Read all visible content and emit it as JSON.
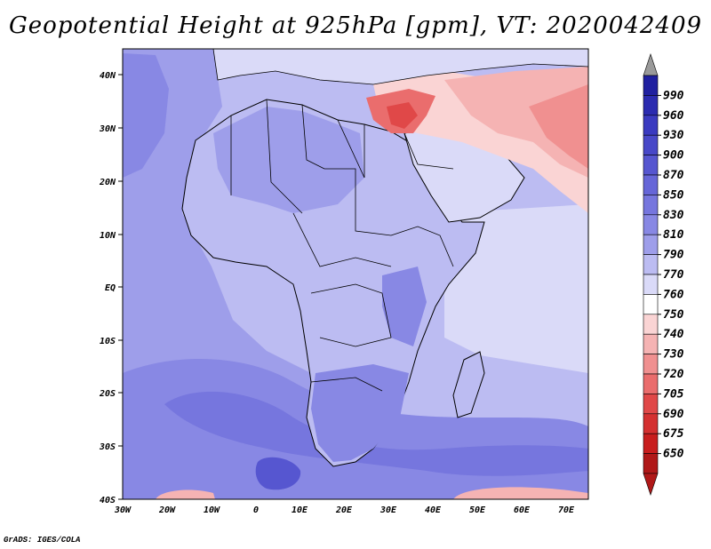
{
  "title": "Geopotential Height at 925hPa [gpm], VT: 2020042409",
  "credit": "GrADS: IGES/COLA",
  "map": {
    "variable": "Geopotential Height",
    "level": "925hPa",
    "units": "gpm",
    "valid_time": "2020042409",
    "lon_range": [
      -30,
      75
    ],
    "lat_range": [
      -40,
      45
    ],
    "lat_labels": [
      "40N",
      "30N",
      "20N",
      "10N",
      "EQ",
      "10S",
      "20S",
      "30S",
      "40S"
    ],
    "lon_labels": [
      "30W",
      "20W",
      "10W",
      "0",
      "10E",
      "20E",
      "30E",
      "40E",
      "50E",
      "60E",
      "70E"
    ]
  },
  "colorbar": {
    "levels": [
      "990",
      "960",
      "930",
      "900",
      "870",
      "850",
      "830",
      "810",
      "790",
      "770",
      "760",
      "750",
      "740",
      "730",
      "720",
      "705",
      "690",
      "675",
      "650"
    ],
    "colors": [
      "#2020a0",
      "#2b2bb0",
      "#3a3ac0",
      "#4848c8",
      "#5656d0",
      "#6666d8",
      "#7676de",
      "#8888e4",
      "#9e9eea",
      "#bcbcf2",
      "#dadaf8",
      "#ffffff",
      "#fad4d4",
      "#f5b3b3",
      "#f09090",
      "#ea6d6d",
      "#e04848",
      "#d43030",
      "#c81e1e",
      "#b01818"
    ],
    "top_arrow": "#9a9a9a",
    "bottom_arrow": "#b01818"
  }
}
